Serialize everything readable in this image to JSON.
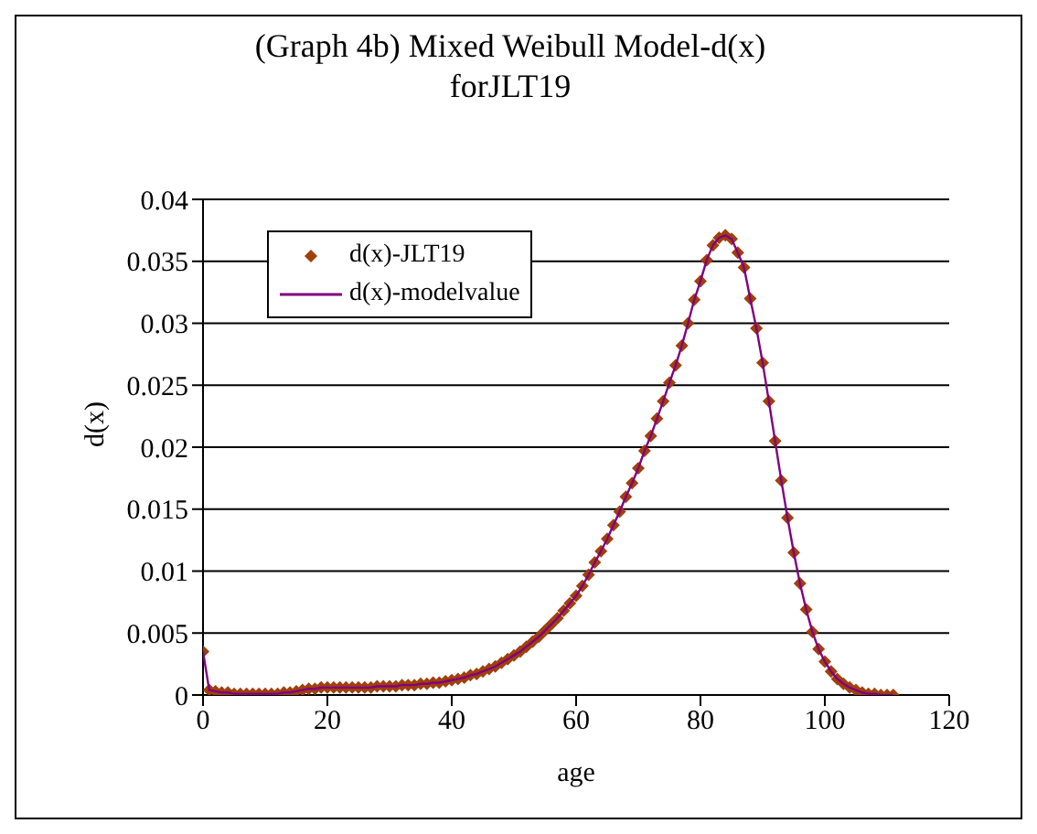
{
  "chart_data": {
    "type": "line",
    "title": "(Graph 4b) Mixed Weibull Model-d(x) forJLT19",
    "xlabel": "age",
    "ylabel": "d(x)",
    "x": [
      0,
      1,
      2,
      3,
      4,
      5,
      6,
      7,
      8,
      9,
      10,
      11,
      12,
      13,
      14,
      15,
      16,
      17,
      18,
      19,
      20,
      21,
      22,
      23,
      24,
      25,
      26,
      27,
      28,
      29,
      30,
      31,
      32,
      33,
      34,
      35,
      36,
      37,
      38,
      39,
      40,
      41,
      42,
      43,
      44,
      45,
      46,
      47,
      48,
      49,
      50,
      51,
      52,
      53,
      54,
      55,
      56,
      57,
      58,
      59,
      60,
      61,
      62,
      63,
      64,
      65,
      66,
      67,
      68,
      69,
      70,
      71,
      72,
      73,
      74,
      75,
      76,
      77,
      78,
      79,
      80,
      81,
      82,
      83,
      84,
      85,
      86,
      87,
      88,
      89,
      90,
      91,
      92,
      93,
      94,
      95,
      96,
      97,
      98,
      99,
      100,
      101,
      102,
      103,
      104,
      105,
      106,
      107,
      108,
      109,
      110,
      111
    ],
    "series": [
      {
        "name": "d(x)-JLT19",
        "type": "scatter",
        "marker": "diamond",
        "color": "#a0400a",
        "values": [
          0.0035,
          0.0004,
          0.0003,
          0.0002,
          0.0002,
          0.0001,
          0.0001,
          0.0001,
          0.0001,
          0.0001,
          0.0001,
          0.0001,
          0.0001,
          0.0002,
          0.0002,
          0.0003,
          0.0004,
          0.0005,
          0.0005,
          0.0006,
          0.0006,
          0.0006,
          0.0006,
          0.0006,
          0.0006,
          0.0006,
          0.0006,
          0.0006,
          0.0007,
          0.0007,
          0.0007,
          0.0007,
          0.0008,
          0.0008,
          0.0008,
          0.0009,
          0.0009,
          0.001,
          0.001,
          0.0011,
          0.0012,
          0.0013,
          0.0014,
          0.0016,
          0.0017,
          0.0019,
          0.0021,
          0.0023,
          0.0026,
          0.0029,
          0.0032,
          0.0035,
          0.0039,
          0.0043,
          0.0047,
          0.0052,
          0.0057,
          0.0062,
          0.0068,
          0.0074,
          0.008,
          0.0088,
          0.0097,
          0.0107,
          0.0116,
          0.0126,
          0.0137,
          0.0148,
          0.016,
          0.0171,
          0.0183,
          0.0197,
          0.0209,
          0.0223,
          0.0237,
          0.0252,
          0.0266,
          0.0282,
          0.03,
          0.0319,
          0.0334,
          0.0351,
          0.0363,
          0.0369,
          0.0371,
          0.0368,
          0.0357,
          0.0345,
          0.032,
          0.0296,
          0.0268,
          0.0237,
          0.0205,
          0.0173,
          0.0143,
          0.0115,
          0.009,
          0.0069,
          0.0051,
          0.0037,
          0.0027,
          0.0019,
          0.0013,
          0.0009,
          0.0006,
          0.0004,
          0.0002,
          0.0001,
          0.0001,
          0,
          0,
          0
        ]
      },
      {
        "name": "d(x)-modelvalue",
        "type": "line",
        "marker": "none",
        "color": "#800080",
        "values": [
          0.0035,
          0.0004,
          0.0003,
          0.0002,
          0.0002,
          0.0001,
          0.0001,
          0.0001,
          0.0001,
          0.0001,
          0.0001,
          0.0001,
          0.0001,
          0.0002,
          0.0002,
          0.0003,
          0.0004,
          0.0005,
          0.0005,
          0.0006,
          0.0006,
          0.0006,
          0.0006,
          0.0006,
          0.0006,
          0.0006,
          0.0006,
          0.0006,
          0.0007,
          0.0007,
          0.0007,
          0.0007,
          0.0008,
          0.0008,
          0.0008,
          0.0009,
          0.0009,
          0.001,
          0.001,
          0.0011,
          0.0012,
          0.0013,
          0.0014,
          0.0016,
          0.0017,
          0.0019,
          0.0021,
          0.0023,
          0.0026,
          0.0029,
          0.0032,
          0.0035,
          0.0039,
          0.0043,
          0.0047,
          0.0052,
          0.0057,
          0.0062,
          0.0068,
          0.0074,
          0.008,
          0.0088,
          0.0097,
          0.0107,
          0.0116,
          0.0126,
          0.0137,
          0.0148,
          0.016,
          0.0171,
          0.0183,
          0.0197,
          0.0209,
          0.0223,
          0.0237,
          0.0252,
          0.0266,
          0.0282,
          0.03,
          0.0319,
          0.0334,
          0.0351,
          0.0363,
          0.0369,
          0.0371,
          0.0368,
          0.0357,
          0.0345,
          0.032,
          0.0296,
          0.0268,
          0.0237,
          0.0205,
          0.0173,
          0.0143,
          0.0115,
          0.009,
          0.0069,
          0.0051,
          0.0037,
          0.0027,
          0.0019,
          0.0013,
          0.0009,
          0.0006,
          0.0004,
          0.0002,
          0.0001,
          0.0001,
          0,
          0,
          0
        ]
      }
    ],
    "xlim": [
      0,
      120
    ],
    "xticks": [
      0,
      20,
      40,
      60,
      80,
      100,
      120
    ],
    "ylim": [
      0,
      0.04
    ],
    "yticks": [
      0,
      0.005,
      0.01,
      0.015,
      0.02,
      0.025,
      0.03,
      0.035,
      0.04
    ],
    "grid": "y",
    "legend": "top left"
  }
}
